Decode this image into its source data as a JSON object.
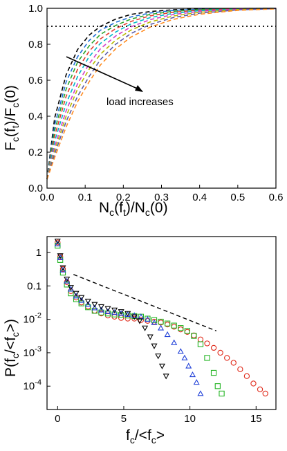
{
  "chart_data": [
    {
      "type": "line",
      "xlabel": {
        "main": "N",
        "sub": "c",
        "paren1": "(f",
        "sub2": "t",
        "rest": ")/N",
        "sub3": "c",
        "tail": "(0)"
      },
      "ylabel": {
        "main": "F",
        "sub": "c",
        "paren1": "(f",
        "sub2": "t",
        "rest": ")/F",
        "sub3": "c",
        "tail": "(0)"
      },
      "xlim": [
        0.0,
        0.6
      ],
      "ylim": [
        0.0,
        1.0
      ],
      "xticks": [
        "0.0",
        "0.1",
        "0.2",
        "0.3",
        "0.4",
        "0.5",
        "0.6"
      ],
      "yticks": [
        "0.0",
        "0.2",
        "0.4",
        "0.6",
        "0.8",
        "1.0"
      ],
      "reference_line": {
        "y": 0.9,
        "style": "dotted",
        "color": "#000000"
      },
      "annotation": "load increases",
      "series": [
        {
          "color": "#000000",
          "x": [
            0,
            0.02,
            0.05,
            0.08,
            0.11,
            0.14,
            0.18,
            0.22,
            0.27,
            0.33,
            0.4,
            0.5,
            0.6
          ],
          "y": [
            0.05,
            0.39,
            0.63,
            0.77,
            0.85,
            0.9,
            0.94,
            0.966,
            0.982,
            0.992,
            0.997,
            0.999,
            1.0
          ]
        },
        {
          "color": "#1e6fd9",
          "x": [
            0,
            0.02,
            0.05,
            0.08,
            0.11,
            0.14,
            0.18,
            0.22,
            0.27,
            0.33,
            0.4,
            0.5,
            0.6
          ],
          "y": [
            0.05,
            0.35,
            0.59,
            0.73,
            0.82,
            0.878,
            0.922,
            0.952,
            0.974,
            0.988,
            0.995,
            0.999,
            1.0
          ]
        },
        {
          "color": "#2aa52a",
          "x": [
            0,
            0.02,
            0.05,
            0.08,
            0.11,
            0.14,
            0.18,
            0.22,
            0.27,
            0.33,
            0.4,
            0.5,
            0.6
          ],
          "y": [
            0.05,
            0.32,
            0.55,
            0.7,
            0.79,
            0.855,
            0.905,
            0.94,
            0.966,
            0.983,
            0.993,
            0.998,
            1.0
          ]
        },
        {
          "color": "#e23b2e",
          "x": [
            0,
            0.02,
            0.05,
            0.08,
            0.11,
            0.14,
            0.18,
            0.22,
            0.27,
            0.33,
            0.4,
            0.5,
            0.6
          ],
          "y": [
            0.05,
            0.29,
            0.51,
            0.66,
            0.76,
            0.83,
            0.887,
            0.927,
            0.958,
            0.978,
            0.99,
            0.997,
            1.0
          ]
        },
        {
          "color": "#00b7c7",
          "x": [
            0,
            0.02,
            0.05,
            0.08,
            0.11,
            0.14,
            0.18,
            0.22,
            0.27,
            0.33,
            0.4,
            0.5,
            0.6
          ],
          "y": [
            0.05,
            0.26,
            0.47,
            0.62,
            0.73,
            0.805,
            0.868,
            0.913,
            0.948,
            0.972,
            0.987,
            0.996,
            1.0
          ]
        },
        {
          "color": "#d23cc8",
          "x": [
            0,
            0.02,
            0.05,
            0.08,
            0.11,
            0.14,
            0.18,
            0.22,
            0.27,
            0.33,
            0.4,
            0.5,
            0.6
          ],
          "y": [
            0.05,
            0.23,
            0.43,
            0.58,
            0.69,
            0.775,
            0.846,
            0.897,
            0.937,
            0.965,
            0.983,
            0.995,
            1.0
          ]
        },
        {
          "color": "#b8b800",
          "x": [
            0,
            0.02,
            0.05,
            0.08,
            0.11,
            0.14,
            0.18,
            0.22,
            0.27,
            0.33,
            0.4,
            0.5,
            0.6
          ],
          "y": [
            0.05,
            0.21,
            0.4,
            0.55,
            0.66,
            0.745,
            0.823,
            0.879,
            0.924,
            0.957,
            0.978,
            0.993,
            0.999
          ]
        },
        {
          "color": "#5a5aa8",
          "x": [
            0,
            0.02,
            0.05,
            0.08,
            0.11,
            0.14,
            0.18,
            0.22,
            0.27,
            0.33,
            0.4,
            0.5,
            0.6
          ],
          "y": [
            0.05,
            0.19,
            0.37,
            0.51,
            0.62,
            0.715,
            0.8,
            0.86,
            0.91,
            0.948,
            0.973,
            0.991,
            0.998
          ]
        },
        {
          "color": "#ff8a1e",
          "x": [
            0,
            0.02,
            0.05,
            0.08,
            0.11,
            0.14,
            0.18,
            0.22,
            0.27,
            0.33,
            0.4,
            0.5,
            0.6
          ],
          "y": [
            0.05,
            0.17,
            0.34,
            0.48,
            0.59,
            0.685,
            0.775,
            0.84,
            0.895,
            0.938,
            0.967,
            0.989,
            0.997
          ]
        }
      ]
    },
    {
      "type": "scatter",
      "xlabel": {
        "main": "f",
        "sub": "c",
        "rest": "/<f",
        "sub2": "c",
        "tail": ">"
      },
      "ylabel": {
        "main": "P(f",
        "sub": "c",
        "rest": "/<f",
        "sub2": "c",
        "tail": ">)"
      },
      "y_scale": "log",
      "xlim": [
        -0.8,
        16.5
      ],
      "ylim": [
        2e-05,
        3
      ],
      "xticks": [
        "0",
        "5",
        "10",
        "15"
      ],
      "yticks": [
        {
          "value": 1,
          "base": "1",
          "exp": ""
        },
        {
          "value": 0.1,
          "base": "0.1",
          "exp": ""
        },
        {
          "value": 0.01,
          "base": "10",
          "exp": "-2"
        },
        {
          "value": 0.001,
          "base": "10",
          "exp": "-3"
        },
        {
          "value": 0.0001,
          "base": "10",
          "exp": "-4"
        }
      ],
      "guide_line": {
        "x": [
          1.2,
          12.0
        ],
        "y": [
          0.22,
          0.0045
        ],
        "style": "dashed"
      },
      "series": [
        {
          "color": "#e02a1a",
          "marker": "circle",
          "x": [
            0,
            0.2,
            0.4,
            0.7,
            1.0,
            1.4,
            1.8,
            2.3,
            2.8,
            3.3,
            3.8,
            4.3,
            4.8,
            5.3,
            5.8,
            6.3,
            6.8,
            7.3,
            7.8,
            8.3,
            8.8,
            9.3,
            9.8,
            10.3,
            10.8,
            11.3,
            11.8,
            12.3,
            12.8,
            13.3,
            13.8,
            14.3,
            14.8,
            15.3,
            15.7
          ],
          "y": [
            2.0,
            0.75,
            0.32,
            0.13,
            0.07,
            0.045,
            0.032,
            0.024,
            0.018,
            0.015,
            0.013,
            0.012,
            0.011,
            0.0105,
            0.0105,
            0.0095,
            0.009,
            0.0085,
            0.008,
            0.007,
            0.006,
            0.005,
            0.0042,
            0.0033,
            0.0025,
            0.0019,
            0.0014,
            0.001,
            0.0007,
            0.0005,
            0.00032,
            0.0002,
            0.00012,
            8e-05,
            6e-05
          ]
        },
        {
          "color": "#22b422",
          "marker": "square",
          "x": [
            0,
            0.2,
            0.4,
            0.7,
            1.0,
            1.4,
            1.8,
            2.3,
            2.8,
            3.3,
            3.8,
            4.3,
            4.8,
            5.3,
            5.8,
            6.3,
            6.8,
            7.3,
            7.8,
            8.3,
            8.8,
            9.3,
            9.8,
            10.3,
            10.8,
            11.3,
            11.8,
            12.1,
            12.4
          ],
          "y": [
            1.6,
            0.6,
            0.25,
            0.11,
            0.06,
            0.04,
            0.03,
            0.023,
            0.018,
            0.016,
            0.015,
            0.014,
            0.0135,
            0.013,
            0.0125,
            0.012,
            0.0105,
            0.0095,
            0.0085,
            0.0075,
            0.0065,
            0.0055,
            0.0045,
            0.0032,
            0.0018,
            0.0007,
            0.00025,
            0.0001,
            6e-05
          ]
        },
        {
          "color": "#2242d8",
          "marker": "triangle-up",
          "x": [
            0,
            0.2,
            0.4,
            0.7,
            1.0,
            1.4,
            1.8,
            2.3,
            2.8,
            3.3,
            3.8,
            4.3,
            4.8,
            5.3,
            5.8,
            6.3,
            6.8,
            7.3,
            7.8,
            8.3,
            8.8,
            9.3,
            9.6,
            9.9,
            10.2,
            10.5,
            10.8
          ],
          "y": [
            1.8,
            0.7,
            0.3,
            0.14,
            0.08,
            0.05,
            0.037,
            0.028,
            0.022,
            0.019,
            0.017,
            0.016,
            0.015,
            0.014,
            0.013,
            0.012,
            0.01,
            0.008,
            0.0055,
            0.0035,
            0.002,
            0.0011,
            0.0007,
            0.0004,
            0.00022,
            0.00013,
            6e-05
          ]
        },
        {
          "color": "#000000",
          "marker": "triangle-down",
          "x": [
            0,
            0.2,
            0.4,
            0.7,
            1.0,
            1.4,
            1.8,
            2.3,
            2.8,
            3.3,
            3.8,
            4.3,
            4.8,
            5.3,
            5.8,
            6.2,
            6.6,
            7.0,
            7.3,
            7.6,
            7.9,
            8.2
          ],
          "y": [
            2.2,
            0.8,
            0.35,
            0.16,
            0.09,
            0.06,
            0.045,
            0.035,
            0.028,
            0.024,
            0.021,
            0.019,
            0.017,
            0.015,
            0.012,
            0.009,
            0.0055,
            0.003,
            0.0016,
            0.0008,
            0.0004,
            0.0002
          ]
        }
      ]
    }
  ]
}
